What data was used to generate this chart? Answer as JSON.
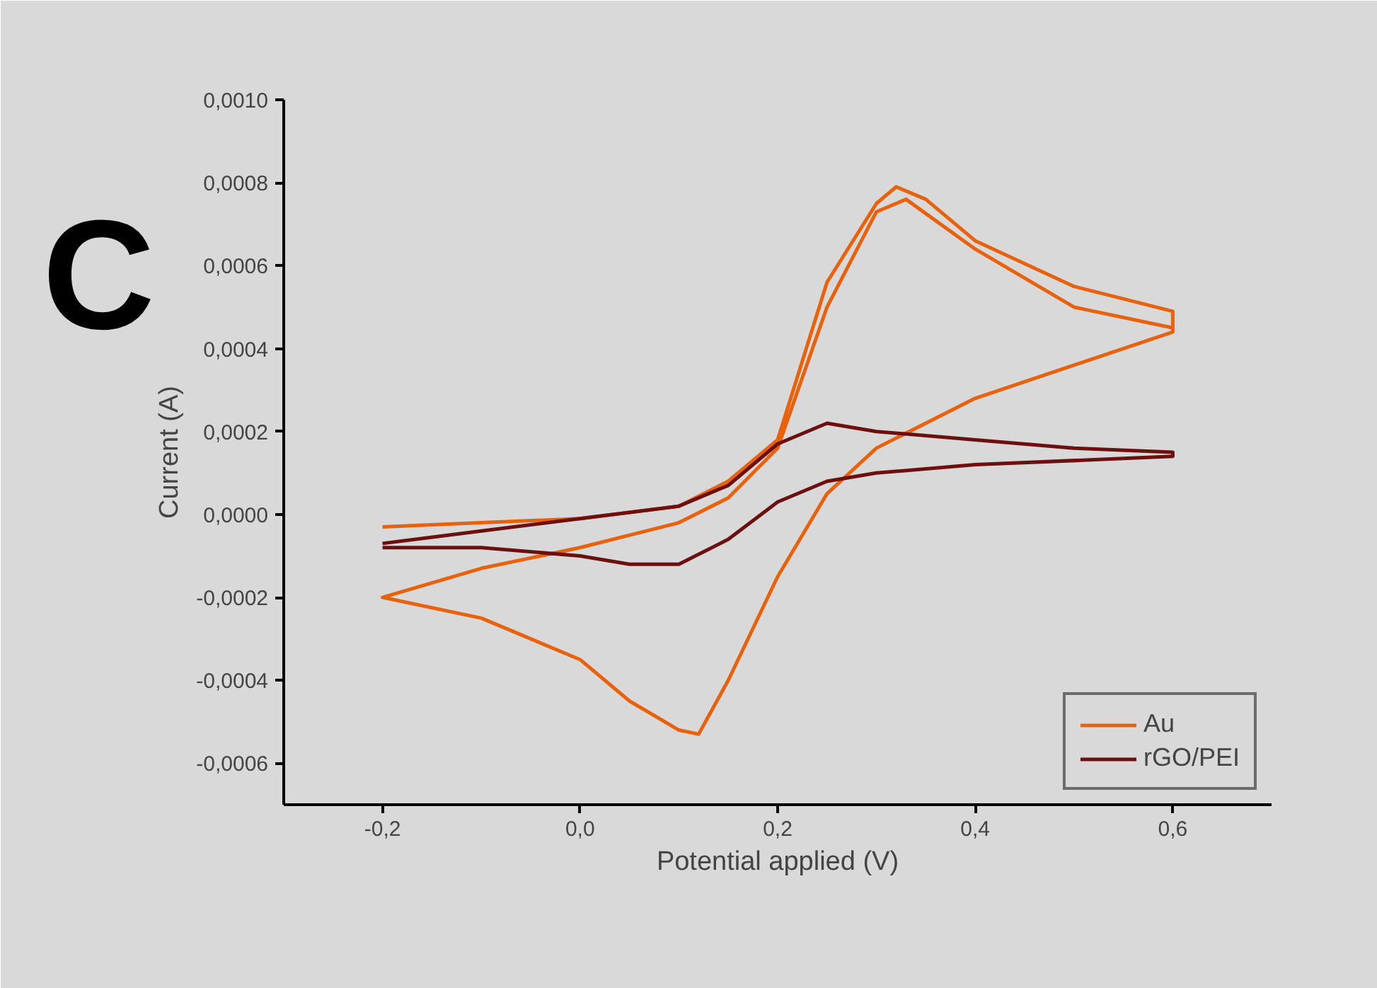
{
  "chart_data": {
    "type": "line",
    "xlabel": "Potential applied (V)",
    "ylabel": "Current (A)",
    "annotations": [
      "C"
    ],
    "xlim": [
      -0.3,
      0.7
    ],
    "ylim": [
      -0.0007,
      0.001
    ],
    "xticks": [
      {
        "value": -0.2,
        "label": "-0,2"
      },
      {
        "value": 0.0,
        "label": "0,0"
      },
      {
        "value": 0.2,
        "label": "0,2"
      },
      {
        "value": 0.4,
        "label": "0,4"
      },
      {
        "value": 0.6,
        "label": "0,6"
      }
    ],
    "yticks": [
      {
        "value": -0.0006,
        "label": "-0,0006"
      },
      {
        "value": -0.0004,
        "label": "-0,0004"
      },
      {
        "value": -0.0002,
        "label": "-0,0002"
      },
      {
        "value": 0.0,
        "label": "0,0000"
      },
      {
        "value": 0.0002,
        "label": "0,0002"
      },
      {
        "value": 0.0004,
        "label": "0,0004"
      },
      {
        "value": 0.0006,
        "label": "0,0006"
      },
      {
        "value": 0.0008,
        "label": "0,0008"
      },
      {
        "value": 0.001,
        "label": "0,0010"
      }
    ],
    "grid": false,
    "legend": "bottom right",
    "marker": "none",
    "line_style": "solid",
    "series": [
      {
        "name": "Au",
        "color": "#e8620c",
        "x": [
          -0.2,
          -0.1,
          0.0,
          0.1,
          0.15,
          0.2,
          0.25,
          0.3,
          0.32,
          0.35,
          0.4,
          0.5,
          0.6,
          0.6,
          0.5,
          0.4,
          0.3,
          0.25,
          0.2,
          0.15,
          0.12,
          0.1,
          0.05,
          0.0,
          -0.1,
          -0.2,
          -0.1,
          0.0,
          0.1,
          0.15,
          0.2,
          0.25,
          0.3,
          0.33,
          0.4,
          0.5,
          0.6
        ],
        "values": [
          -3e-05,
          -2e-05,
          -1e-05,
          2e-05,
          8e-05,
          0.00018,
          0.00056,
          0.00075,
          0.00079,
          0.00076,
          0.00066,
          0.00055,
          0.00049,
          0.00044,
          0.00036,
          0.00028,
          0.00016,
          5e-05,
          -0.00015,
          -0.0004,
          -0.00053,
          -0.00052,
          -0.00045,
          -0.00035,
          -0.00025,
          -0.0002,
          -0.00013,
          -8e-05,
          -2e-05,
          4e-05,
          0.00016,
          0.0005,
          0.00073,
          0.00076,
          0.00064,
          0.0005,
          0.00045
        ]
      },
      {
        "name": "rGO/PEI",
        "color": "#6b0f0f",
        "x": [
          -0.2,
          -0.1,
          0.0,
          0.1,
          0.15,
          0.2,
          0.25,
          0.3,
          0.4,
          0.5,
          0.6,
          0.6,
          0.4,
          0.3,
          0.25,
          0.2,
          0.15,
          0.1,
          0.05,
          0.0,
          -0.1,
          -0.2
        ],
        "values": [
          -7e-05,
          -4e-05,
          -1e-05,
          2e-05,
          7e-05,
          0.00017,
          0.00022,
          0.0002,
          0.00018,
          0.00016,
          0.00015,
          0.00014,
          0.00012,
          0.0001,
          8e-05,
          3e-05,
          -6e-05,
          -0.00012,
          -0.00012,
          -0.0001,
          -8e-05,
          -8e-05
        ]
      }
    ]
  }
}
